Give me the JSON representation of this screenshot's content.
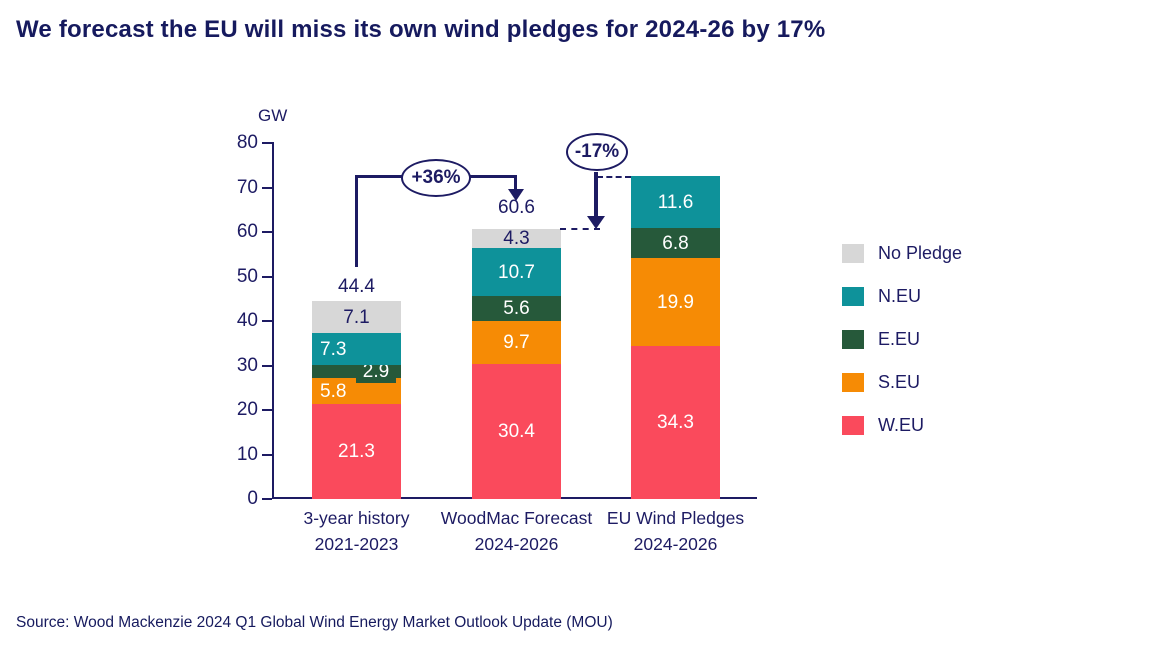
{
  "title": "We forecast the EU will miss its own wind pledges for 2024-26 by 17%",
  "source": "Source: Wood Mackenzie 2024 Q1 Global Wind Energy Market Outlook Update (MOU)",
  "colors": {
    "text_navy": "#1d1b63",
    "w_eu": "#fa4a5c",
    "s_eu": "#f68b05",
    "e_eu": "#26593a",
    "n_eu": "#0e929a",
    "no_pledge": "#d7d7d7"
  },
  "chart_data": {
    "type": "bar",
    "stacked": true,
    "unit_label": "GW",
    "ylabel": "GW",
    "ylim": [
      0,
      80
    ],
    "ytick_step": 10,
    "grid": false,
    "legend_position": "right",
    "categories": [
      {
        "line1": "3-year history",
        "line2": "2021-2023"
      },
      {
        "line1": "WoodMac Forecast",
        "line2": "2024-2026"
      },
      {
        "line1": "EU Wind Pledges",
        "line2": "2024-2026"
      }
    ],
    "series": [
      {
        "name": "W.EU",
        "color": "#fa4a5c",
        "label_color": "#ffffff",
        "values": [
          21.3,
          30.4,
          34.3
        ]
      },
      {
        "name": "S.EU",
        "color": "#f68b05",
        "label_color": "#ffffff",
        "values": [
          5.8,
          9.7,
          19.9
        ]
      },
      {
        "name": "E.EU",
        "color": "#26593a",
        "label_color": "#ffffff",
        "values": [
          2.9,
          5.6,
          6.8
        ]
      },
      {
        "name": "N.EU",
        "color": "#0e929a",
        "label_color": "#ffffff",
        "values": [
          7.3,
          10.7,
          11.6
        ]
      },
      {
        "name": "No Pledge",
        "color": "#d7d7d7",
        "label_color": "#1d1b63",
        "values": [
          7.1,
          4.3,
          null
        ]
      }
    ],
    "bar_totals": [
      "44.4",
      "60.6",
      null
    ],
    "annotations": [
      {
        "label": "+36%"
      },
      {
        "label": "-17%"
      }
    ]
  }
}
